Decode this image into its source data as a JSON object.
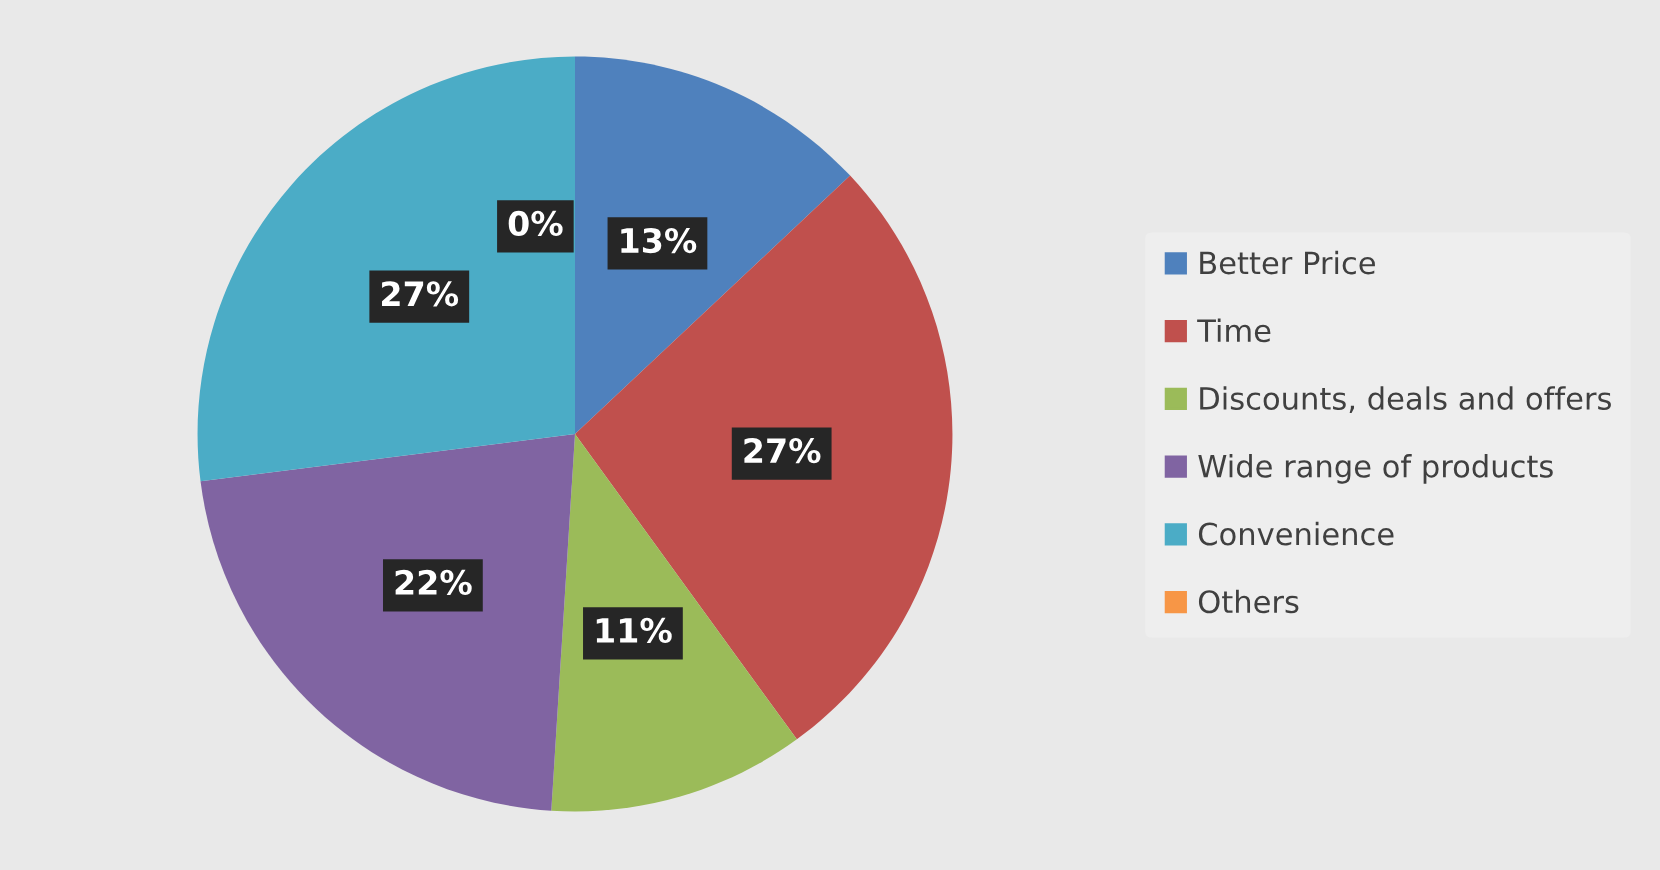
{
  "chart_data": {
    "type": "pie",
    "categories": [
      "Better Price",
      "Time",
      "Discounts, deals and offers",
      "Wide range of products",
      "Convenience",
      "Others"
    ],
    "values": [
      13,
      27,
      11,
      22,
      27,
      0
    ],
    "value_labels": [
      "13%",
      "27%",
      "11%",
      "22%",
      "27%",
      "0%"
    ],
    "colors": [
      "#4f81bd",
      "#c0504d",
      "#9bbb59",
      "#8064a2",
      "#4bacc6",
      "#f79646"
    ],
    "legend": "right"
  }
}
